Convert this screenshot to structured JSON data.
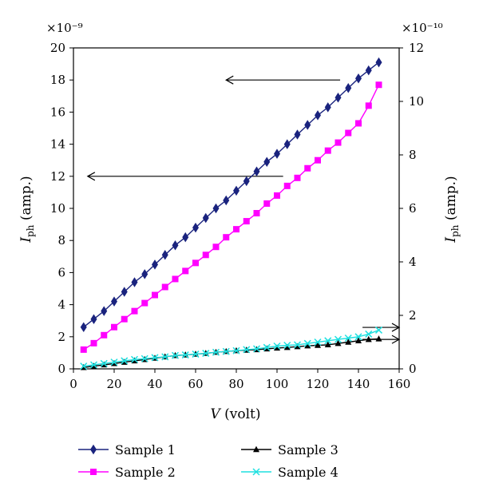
{
  "chart_data": {
    "type": "line",
    "multiplier_left": "×10⁻⁹",
    "multiplier_right": "×10⁻¹⁰",
    "xlabel_var": "V",
    "xlabel_unit": " (volt)",
    "ylabel_left_var": "I",
    "ylabel_left_sub": "ph",
    "ylabel_left_unit": " (amp.)",
    "ylabel_right_var": "I",
    "ylabel_right_sub": "ph",
    "ylabel_right_unit": " (amp.)",
    "xlim": [
      0,
      160
    ],
    "ylim_left": [
      0,
      20
    ],
    "ylim_right": [
      0,
      12
    ],
    "xticks": [
      0,
      20,
      40,
      60,
      80,
      100,
      120,
      140,
      160
    ],
    "yticks_left": [
      0,
      2,
      4,
      6,
      8,
      10,
      12,
      14,
      16,
      18,
      20
    ],
    "yticks_right": [
      0,
      2,
      4,
      6,
      8,
      10,
      12
    ],
    "grid": false,
    "legend_position": "bottom",
    "series": [
      {
        "name": "Sample 1",
        "axis": "left",
        "color": "#1a237e",
        "marker": "diamond",
        "x": [
          5,
          10,
          15,
          20,
          25,
          30,
          35,
          40,
          45,
          50,
          55,
          60,
          65,
          70,
          75,
          80,
          85,
          90,
          95,
          100,
          105,
          110,
          115,
          120,
          125,
          130,
          135,
          140,
          145,
          150
        ],
        "y": [
          2.6,
          3.1,
          3.6,
          4.2,
          4.8,
          5.4,
          5.9,
          6.5,
          7.1,
          7.7,
          8.2,
          8.8,
          9.4,
          10.0,
          10.5,
          11.1,
          11.7,
          12.3,
          12.9,
          13.4,
          14.0,
          14.6,
          15.2,
          15.8,
          16.3,
          16.9,
          17.5,
          18.1,
          18.6,
          19.1
        ]
      },
      {
        "name": "Sample 2",
        "axis": "left",
        "color": "#ff00ff",
        "marker": "square",
        "x": [
          5,
          10,
          15,
          20,
          25,
          30,
          35,
          40,
          45,
          50,
          55,
          60,
          65,
          70,
          75,
          80,
          85,
          90,
          95,
          100,
          105,
          110,
          115,
          120,
          125,
          130,
          135,
          140,
          145,
          150
        ],
        "y": [
          1.2,
          1.6,
          2.1,
          2.6,
          3.1,
          3.6,
          4.1,
          4.6,
          5.1,
          5.6,
          6.1,
          6.6,
          7.1,
          7.6,
          8.2,
          8.7,
          9.2,
          9.7,
          10.3,
          10.8,
          11.4,
          11.9,
          12.5,
          13.0,
          13.6,
          14.1,
          14.7,
          15.3,
          16.4,
          17.7
        ]
      },
      {
        "name": "Sample 3",
        "axis": "right",
        "color": "#000000",
        "marker": "triangle",
        "x": [
          5,
          10,
          15,
          20,
          25,
          30,
          35,
          40,
          45,
          50,
          55,
          60,
          65,
          70,
          75,
          80,
          85,
          90,
          95,
          100,
          105,
          110,
          115,
          120,
          125,
          130,
          135,
          140,
          145,
          150
        ],
        "y": [
          0.05,
          0.1,
          0.15,
          0.2,
          0.25,
          0.3,
          0.35,
          0.4,
          0.45,
          0.5,
          0.52,
          0.55,
          0.58,
          0.62,
          0.65,
          0.68,
          0.7,
          0.72,
          0.75,
          0.78,
          0.8,
          0.83,
          0.86,
          0.88,
          0.9,
          0.95,
          1.0,
          1.05,
          1.1,
          1.12
        ]
      },
      {
        "name": "Sample 4",
        "axis": "right",
        "color": "#1ee0e0",
        "marker": "x",
        "x": [
          5,
          10,
          15,
          20,
          25,
          30,
          35,
          40,
          45,
          50,
          55,
          60,
          65,
          70,
          75,
          80,
          85,
          90,
          95,
          100,
          105,
          110,
          115,
          120,
          125,
          130,
          135,
          140,
          145,
          150
        ],
        "y": [
          0.1,
          0.15,
          0.2,
          0.25,
          0.3,
          0.35,
          0.38,
          0.42,
          0.45,
          0.5,
          0.52,
          0.55,
          0.58,
          0.62,
          0.65,
          0.68,
          0.72,
          0.75,
          0.8,
          0.85,
          0.88,
          0.9,
          0.95,
          1.0,
          1.05,
          1.1,
          1.15,
          1.2,
          1.3,
          1.45
        ]
      }
    ],
    "annotations": [
      {
        "type": "arrow",
        "points_to": "left",
        "x_from": 131,
        "x_to": 75,
        "y": 18,
        "axis": "left"
      },
      {
        "type": "arrow",
        "points_to": "left",
        "x_from": 103,
        "x_to": 7,
        "y": 12,
        "axis": "left"
      },
      {
        "type": "arrow",
        "points_to": "right",
        "x_from": 142,
        "x_to": 160,
        "y": 1.55,
        "axis": "right"
      },
      {
        "type": "arrow",
        "points_to": "right",
        "x_from": 142,
        "x_to": 160,
        "y": 1.1,
        "axis": "right"
      }
    ]
  }
}
